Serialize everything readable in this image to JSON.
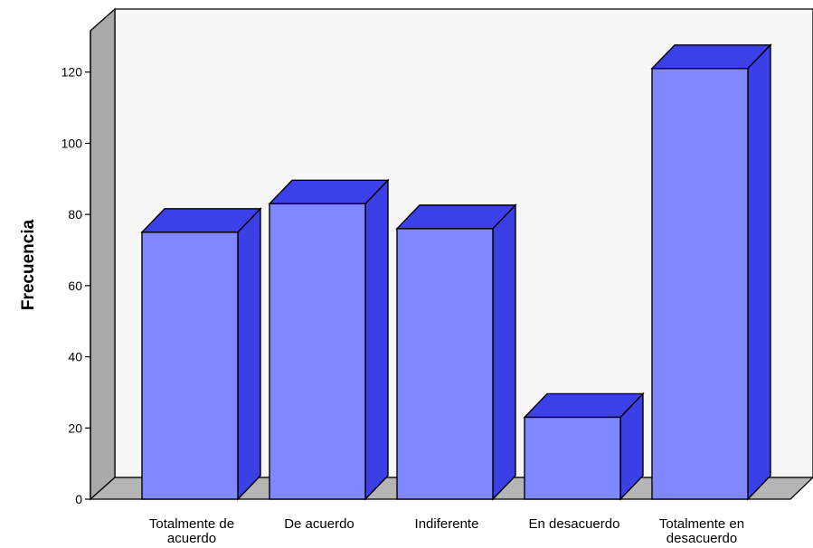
{
  "chart_data": {
    "type": "bar",
    "title": "",
    "xlabel": "",
    "ylabel": "Frecuencia",
    "ylim": [
      0,
      140
    ],
    "yticks": [
      0,
      20,
      40,
      60,
      80,
      100,
      120
    ],
    "grid": false,
    "categories": [
      [
        "Totalmente de",
        "acuerdo"
      ],
      [
        "De acuerdo"
      ],
      [
        "Indiferente"
      ],
      [
        "En desacuerdo"
      ],
      [
        "Totalmente en",
        "desacuerdo"
      ]
    ],
    "values": [
      75,
      83,
      76,
      23,
      121
    ],
    "colors": {
      "bar_front": "#8088ff",
      "bar_side": "#3a3fe6",
      "bar_top": "#3c40e8",
      "wall_back": "#f7f7f7",
      "wall_side": "#a9a9a9",
      "floor": "#b5b5b5"
    }
  }
}
